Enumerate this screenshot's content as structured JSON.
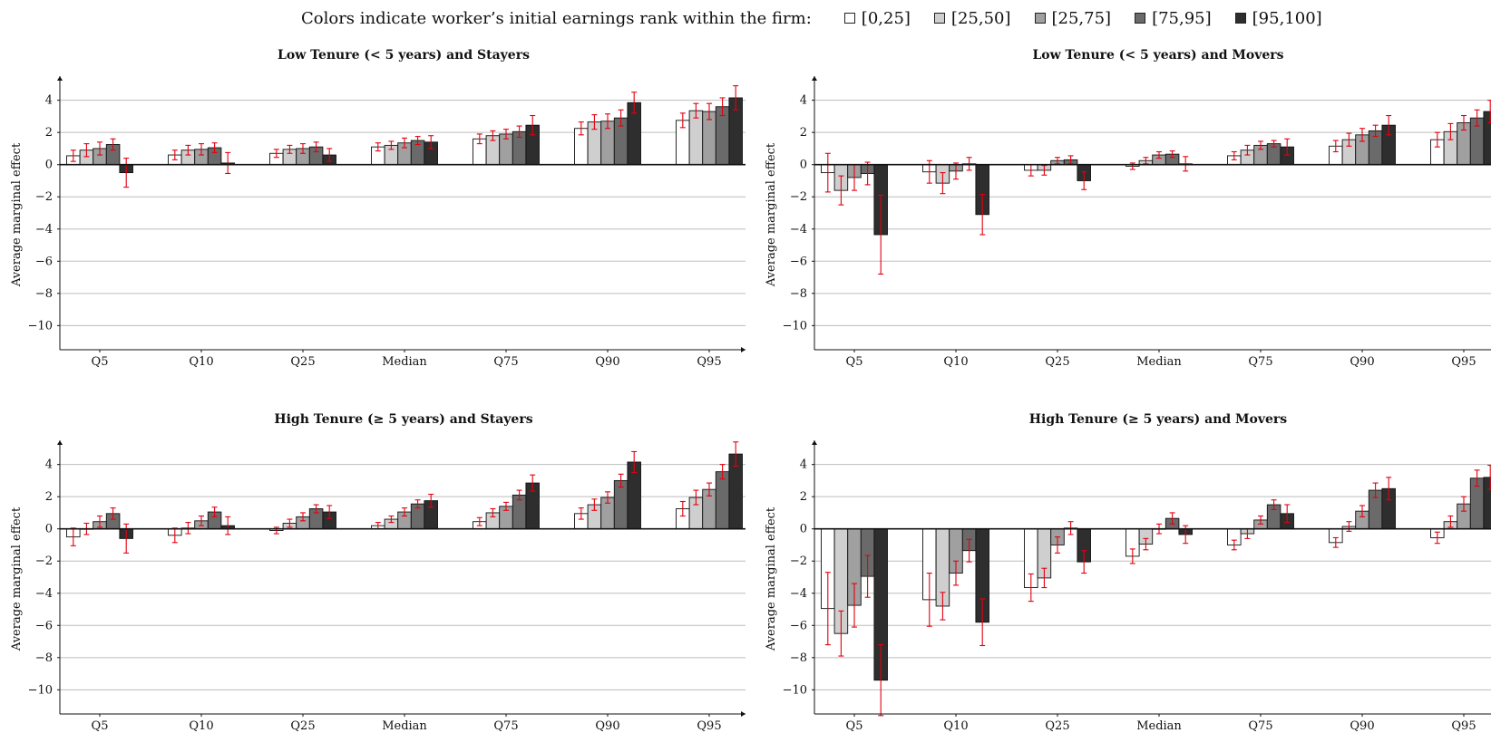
{
  "legend": {
    "caption": "Colors indicate worker’s initial earnings rank within the firm:",
    "items": [
      {
        "label": "[0,25]",
        "color": "#ffffff"
      },
      {
        "label": "[25,50]",
        "color": "#cfcfcf"
      },
      {
        "label": "[25,75]",
        "color": "#a0a0a0"
      },
      {
        "label": "[75,95]",
        "color": "#6a6a6a"
      },
      {
        "label": "[95,100]",
        "color": "#2e2e2e"
      }
    ]
  },
  "colors": {
    "errorbar": "#e3000f",
    "grid": "#bdbdbd"
  },
  "chart_data": [
    {
      "type": "bar",
      "title": "Low Tenure (< 5 years) and Stayers",
      "ylabel": "Average marginal effect",
      "ylim": [
        -11.5,
        5.5
      ],
      "yticks": [
        4,
        2,
        0,
        -2,
        -4,
        -6,
        -8,
        -10
      ],
      "categories": [
        "Q5",
        "Q10",
        "Q25",
        "Median",
        "Q75",
        "Q90",
        "Q95"
      ],
      "series": [
        {
          "name": "[0,25]",
          "values": [
            0.55,
            0.6,
            0.7,
            1.1,
            1.6,
            2.25,
            2.75
          ],
          "ci": [
            0.35,
            0.3,
            0.25,
            0.25,
            0.3,
            0.4,
            0.45
          ]
        },
        {
          "name": "[25,50]",
          "values": [
            0.9,
            0.9,
            0.95,
            1.2,
            1.8,
            2.65,
            3.35
          ],
          "ci": [
            0.4,
            0.3,
            0.25,
            0.25,
            0.3,
            0.45,
            0.45
          ]
        },
        {
          "name": "[25,75]",
          "values": [
            1.0,
            0.95,
            1.0,
            1.35,
            1.9,
            2.7,
            3.3
          ],
          "ci": [
            0.4,
            0.35,
            0.3,
            0.3,
            0.3,
            0.45,
            0.5
          ]
        },
        {
          "name": "[75,95]",
          "values": [
            1.25,
            1.05,
            1.1,
            1.5,
            2.05,
            2.9,
            3.6
          ],
          "ci": [
            0.35,
            0.3,
            0.3,
            0.25,
            0.35,
            0.5,
            0.55
          ]
        },
        {
          "name": "[95,100]",
          "values": [
            -0.5,
            0.1,
            0.6,
            1.4,
            2.45,
            3.85,
            4.15
          ],
          "ci": [
            0.9,
            0.65,
            0.4,
            0.4,
            0.6,
            0.65,
            0.75
          ]
        }
      ]
    },
    {
      "type": "bar",
      "title": "Low Tenure (< 5 years) and Movers",
      "ylabel": "Average marginal effect",
      "ylim": [
        -11.5,
        5.5
      ],
      "yticks": [
        4,
        2,
        0,
        -2,
        -4,
        -6,
        -8,
        -10
      ],
      "categories": [
        "Q5",
        "Q10",
        "Q25",
        "Median",
        "Q75",
        "Q90",
        "Q95"
      ],
      "series": [
        {
          "name": "[0,25]",
          "values": [
            -0.5,
            -0.45,
            -0.35,
            -0.1,
            0.55,
            1.15,
            1.55
          ],
          "ci": [
            1.2,
            0.7,
            0.35,
            0.2,
            0.25,
            0.35,
            0.45
          ]
        },
        {
          "name": "[25,50]",
          "values": [
            -1.6,
            -1.15,
            -0.35,
            0.25,
            0.9,
            1.55,
            2.05
          ],
          "ci": [
            0.9,
            0.65,
            0.3,
            0.2,
            0.3,
            0.4,
            0.5
          ]
        },
        {
          "name": "[25,75]",
          "values": [
            -0.8,
            -0.4,
            0.25,
            0.6,
            1.2,
            1.85,
            2.6
          ],
          "ci": [
            0.8,
            0.5,
            0.2,
            0.2,
            0.25,
            0.4,
            0.45
          ]
        },
        {
          "name": "[75,95]",
          "values": [
            -0.55,
            0.05,
            0.3,
            0.65,
            1.3,
            2.1,
            2.9
          ],
          "ci": [
            0.7,
            0.4,
            0.25,
            0.2,
            0.2,
            0.35,
            0.5
          ]
        },
        {
          "name": "[95,100]",
          "values": [
            -4.35,
            -3.1,
            -1.0,
            0.05,
            1.1,
            2.45,
            3.3
          ],
          "ci": [
            2.45,
            1.25,
            0.55,
            0.45,
            0.5,
            0.6,
            0.7
          ]
        }
      ]
    },
    {
      "type": "bar",
      "title": "High Tenure (≥ 5 years) and Stayers",
      "ylabel": "Average marginal effect",
      "ylim": [
        -11.5,
        5.5
      ],
      "yticks": [
        4,
        2,
        0,
        -2,
        -4,
        -6,
        -8,
        -10
      ],
      "categories": [
        "Q5",
        "Q10",
        "Q25",
        "Median",
        "Q75",
        "Q90",
        "Q95"
      ],
      "series": [
        {
          "name": "[0,25]",
          "values": [
            -0.5,
            -0.4,
            -0.1,
            0.2,
            0.45,
            0.95,
            1.25
          ],
          "ci": [
            0.55,
            0.45,
            0.2,
            0.2,
            0.25,
            0.35,
            0.45
          ]
        },
        {
          "name": "[25,50]",
          "values": [
            0.0,
            0.05,
            0.35,
            0.6,
            1.0,
            1.5,
            1.95
          ],
          "ci": [
            0.35,
            0.35,
            0.25,
            0.2,
            0.25,
            0.35,
            0.45
          ]
        },
        {
          "name": "[25,75]",
          "values": [
            0.45,
            0.5,
            0.75,
            1.05,
            1.4,
            1.95,
            2.45
          ],
          "ci": [
            0.35,
            0.3,
            0.25,
            0.25,
            0.25,
            0.35,
            0.4
          ]
        },
        {
          "name": "[75,95]",
          "values": [
            0.95,
            1.05,
            1.25,
            1.55,
            2.1,
            3.0,
            3.55
          ],
          "ci": [
            0.35,
            0.3,
            0.25,
            0.25,
            0.3,
            0.4,
            0.45
          ]
        },
        {
          "name": "[95,100]",
          "values": [
            -0.6,
            0.2,
            1.05,
            1.75,
            2.85,
            4.15,
            4.65
          ],
          "ci": [
            0.9,
            0.55,
            0.4,
            0.4,
            0.5,
            0.65,
            0.75
          ]
        }
      ]
    },
    {
      "type": "bar",
      "title": "High Tenure (≥ 5 years) and Movers",
      "ylabel": "Average marginal effect",
      "ylim": [
        -11.5,
        5.5
      ],
      "yticks": [
        4,
        2,
        0,
        -2,
        -4,
        -6,
        -8,
        -10
      ],
      "categories": [
        "Q5",
        "Q10",
        "Q25",
        "Median",
        "Q75",
        "Q90",
        "Q95"
      ],
      "series": [
        {
          "name": "[0,25]",
          "values": [
            -4.95,
            -4.4,
            -3.65,
            -1.7,
            -1.0,
            -0.85,
            -0.55
          ],
          "ci": [
            2.25,
            1.65,
            0.85,
            0.45,
            0.3,
            0.3,
            0.35
          ]
        },
        {
          "name": "[25,50]",
          "values": [
            -6.5,
            -4.8,
            -3.05,
            -0.95,
            -0.3,
            0.15,
            0.45
          ],
          "ci": [
            1.4,
            0.85,
            0.6,
            0.35,
            0.3,
            0.3,
            0.35
          ]
        },
        {
          "name": "[25,75]",
          "values": [
            -4.75,
            -2.75,
            -1.0,
            0.0,
            0.55,
            1.1,
            1.55
          ],
          "ci": [
            1.35,
            0.75,
            0.5,
            0.3,
            0.25,
            0.35,
            0.45
          ]
        },
        {
          "name": "[75,95]",
          "values": [
            -2.95,
            -1.35,
            0.05,
            0.65,
            1.5,
            2.4,
            3.15
          ],
          "ci": [
            1.3,
            0.7,
            0.4,
            0.35,
            0.3,
            0.45,
            0.5
          ]
        },
        {
          "name": "[95,100]",
          "values": [
            -9.4,
            -5.8,
            -2.05,
            -0.35,
            0.95,
            2.5,
            3.2
          ],
          "ci": [
            2.2,
            1.45,
            0.7,
            0.55,
            0.55,
            0.7,
            0.75
          ]
        }
      ]
    }
  ]
}
